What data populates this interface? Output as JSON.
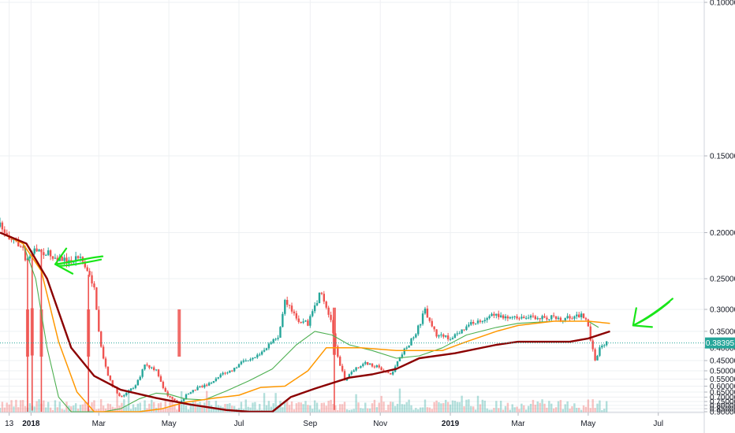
{
  "chart_data": {
    "type": "line",
    "title": "",
    "xlabel": "",
    "ylabel": "",
    "y_scale": "reciprocal",
    "y_axis_position": "right",
    "grid": true,
    "ylim": [
      0.1,
      0.9
    ],
    "y_ticks": [
      0.1,
      0.15,
      0.2,
      0.25,
      0.3,
      0.35,
      0.4,
      0.45,
      0.5,
      0.55,
      0.6,
      0.65,
      0.7,
      0.75,
      0.8,
      0.85,
      0.9
    ],
    "y_tick_labels": [
      "0.10000",
      "0.15000",
      "0.20000",
      "0.25000",
      "0.30000",
      "0.35000",
      "0.40000",
      "0.45000",
      "0.50000",
      "0.55000",
      "0.60000",
      "0.65000",
      "0.70000",
      "0.75000",
      "0.80000",
      "0.85000",
      "0.90000"
    ],
    "x_ticks": [
      {
        "date": "2017-12-13",
        "label": "13",
        "bold": false
      },
      {
        "date": "2018-01-01",
        "label": "2018",
        "bold": true
      },
      {
        "date": "2018-03-01",
        "label": "Mar",
        "bold": false
      },
      {
        "date": "2018-05-01",
        "label": "May",
        "bold": false
      },
      {
        "date": "2018-07-01",
        "label": "Jul",
        "bold": false
      },
      {
        "date": "2018-09-01",
        "label": "Sep",
        "bold": false
      },
      {
        "date": "2018-11-01",
        "label": "Nov",
        "bold": false
      },
      {
        "date": "2019-01-01",
        "label": "2019",
        "bold": true
      },
      {
        "date": "2019-03-01",
        "label": "Mar",
        "bold": false
      },
      {
        "date": "2019-05-01",
        "label": "May",
        "bold": false
      },
      {
        "date": "2019-07-01",
        "label": "Jul",
        "bold": false
      }
    ],
    "xlim": [
      "2017-12-05",
      "2019-08-10"
    ],
    "current_price": {
      "value": 0.38395,
      "label": "0.38395",
      "color": "#26a69a"
    },
    "colors": {
      "up": "#26a69a",
      "down": "#ef5350",
      "ma_fast": "#4caf50",
      "ma_mid": "#ff9800",
      "ma_slow": "#8b0000",
      "annotation": "#19e619",
      "grid": "#eef0f3",
      "axis_text": "#131722"
    },
    "price_path": [
      [
        "2017-12-05",
        0.195
      ],
      [
        "2017-12-15",
        0.205
      ],
      [
        "2017-12-25",
        0.215
      ],
      [
        "2017-12-27",
        0.23
      ],
      [
        "2018-01-05",
        0.215
      ],
      [
        "2018-01-15",
        0.22
      ],
      [
        "2018-01-25",
        0.225
      ],
      [
        "2018-02-05",
        0.23
      ],
      [
        "2018-02-12",
        0.22
      ],
      [
        "2018-02-25",
        0.26
      ],
      [
        "2018-03-10",
        0.55
      ],
      [
        "2018-03-20",
        0.7
      ],
      [
        "2018-04-01",
        0.6
      ],
      [
        "2018-04-10",
        0.47
      ],
      [
        "2018-04-20",
        0.5
      ],
      [
        "2018-05-01",
        0.7
      ],
      [
        "2018-05-10",
        0.78
      ],
      [
        "2018-05-15",
        0.69
      ],
      [
        "2018-05-25",
        0.62
      ],
      [
        "2018-06-05",
        0.58
      ],
      [
        "2018-06-15",
        0.52
      ],
      [
        "2018-06-25",
        0.5
      ],
      [
        "2018-07-05",
        0.45
      ],
      [
        "2018-07-15",
        0.43
      ],
      [
        "2018-07-25",
        0.4
      ],
      [
        "2018-08-05",
        0.36
      ],
      [
        "2018-08-10",
        0.28
      ],
      [
        "2018-08-20",
        0.32
      ],
      [
        "2018-08-30",
        0.33
      ],
      [
        "2018-09-10",
        0.27
      ],
      [
        "2018-09-20",
        0.33
      ],
      [
        "2018-10-01",
        0.55
      ],
      [
        "2018-10-08",
        0.5
      ],
      [
        "2018-10-20",
        0.46
      ],
      [
        "2018-10-30",
        0.48
      ],
      [
        "2018-11-10",
        0.52
      ],
      [
        "2018-11-20",
        0.42
      ],
      [
        "2018-12-01",
        0.36
      ],
      [
        "2018-12-10",
        0.3
      ],
      [
        "2018-12-20",
        0.36
      ],
      [
        "2019-01-01",
        0.37
      ],
      [
        "2019-01-20",
        0.33
      ],
      [
        "2019-02-10",
        0.31
      ],
      [
        "2019-03-01",
        0.32
      ],
      [
        "2019-03-20",
        0.315
      ],
      [
        "2019-04-10",
        0.32
      ],
      [
        "2019-04-25",
        0.31
      ],
      [
        "2019-05-01",
        0.335
      ],
      [
        "2019-05-07",
        0.45
      ],
      [
        "2019-05-12",
        0.39
      ],
      [
        "2019-05-18",
        0.385
      ]
    ],
    "wick_spikes": [
      {
        "date": "2017-12-29",
        "low": 0.9
      },
      {
        "date": "2018-01-02",
        "low": 0.88
      },
      {
        "date": "2018-01-10",
        "low": 0.9
      },
      {
        "date": "2018-02-20",
        "low": 0.9
      },
      {
        "date": "2018-05-10",
        "low": 0.9
      },
      {
        "date": "2018-09-22",
        "low": 0.87
      }
    ],
    "series": [
      {
        "color": "#4caf50",
        "points": [
          [
            "2017-12-05",
            0.2
          ],
          [
            "2017-12-25",
            0.21
          ],
          [
            "2018-01-05",
            0.25
          ],
          [
            "2018-01-15",
            0.4
          ],
          [
            "2018-01-25",
            0.7
          ],
          [
            "2018-02-05",
            0.9
          ],
          [
            "2018-03-05",
            0.9
          ],
          [
            "2018-03-20",
            0.85
          ],
          [
            "2018-04-05",
            0.72
          ],
          [
            "2018-04-20",
            0.66
          ],
          [
            "2018-05-01",
            0.67
          ],
          [
            "2018-05-15",
            0.72
          ],
          [
            "2018-06-01",
            0.73
          ],
          [
            "2018-06-20",
            0.64
          ],
          [
            "2018-07-10",
            0.56
          ],
          [
            "2018-07-30",
            0.49
          ],
          [
            "2018-08-20",
            0.39
          ],
          [
            "2018-09-05",
            0.35
          ],
          [
            "2018-09-20",
            0.36
          ],
          [
            "2018-10-05",
            0.39
          ],
          [
            "2018-10-25",
            0.41
          ],
          [
            "2018-11-15",
            0.44
          ],
          [
            "2018-12-05",
            0.43
          ],
          [
            "2018-12-25",
            0.4
          ],
          [
            "2019-01-15",
            0.36
          ],
          [
            "2019-02-10",
            0.34
          ],
          [
            "2019-03-01",
            0.33
          ],
          [
            "2019-04-01",
            0.325
          ],
          [
            "2019-05-01",
            0.325
          ],
          [
            "2019-05-10",
            0.34
          ]
        ]
      },
      {
        "color": "#ff9800",
        "points": [
          [
            "2017-12-05",
            0.2
          ],
          [
            "2017-12-25",
            0.21
          ],
          [
            "2018-01-10",
            0.24
          ],
          [
            "2018-01-25",
            0.38
          ],
          [
            "2018-02-10",
            0.65
          ],
          [
            "2018-02-25",
            0.9
          ],
          [
            "2018-04-05",
            0.9
          ],
          [
            "2018-04-25",
            0.85
          ],
          [
            "2018-05-15",
            0.76
          ],
          [
            "2018-06-10",
            0.71
          ],
          [
            "2018-07-01",
            0.68
          ],
          [
            "2018-07-20",
            0.61
          ],
          [
            "2018-08-10",
            0.6
          ],
          [
            "2018-08-30",
            0.5
          ],
          [
            "2018-09-15",
            0.4
          ],
          [
            "2018-10-15",
            0.4
          ],
          [
            "2018-11-15",
            0.41
          ],
          [
            "2018-12-10",
            0.41
          ],
          [
            "2018-12-25",
            0.41
          ],
          [
            "2019-01-15",
            0.38
          ],
          [
            "2019-02-10",
            0.35
          ],
          [
            "2019-03-01",
            0.335
          ],
          [
            "2019-04-01",
            0.325
          ],
          [
            "2019-05-01",
            0.325
          ],
          [
            "2019-05-20",
            0.33
          ]
        ]
      },
      {
        "color": "#8b0000",
        "points": [
          [
            "2017-12-05",
            0.2
          ],
          [
            "2017-12-28",
            0.21
          ],
          [
            "2018-01-15",
            0.25
          ],
          [
            "2018-02-05",
            0.4
          ],
          [
            "2018-02-25",
            0.53
          ],
          [
            "2018-03-20",
            0.63
          ],
          [
            "2018-04-20",
            0.71
          ],
          [
            "2018-05-20",
            0.79
          ],
          [
            "2018-06-20",
            0.87
          ],
          [
            "2018-07-10",
            0.9
          ],
          [
            "2018-07-30",
            0.9
          ],
          [
            "2018-08-15",
            0.7
          ],
          [
            "2018-09-05",
            0.62
          ],
          [
            "2018-10-05",
            0.54
          ],
          [
            "2018-10-25",
            0.52
          ],
          [
            "2018-11-15",
            0.49
          ],
          [
            "2018-12-05",
            0.44
          ],
          [
            "2019-01-05",
            0.42
          ],
          [
            "2019-02-10",
            0.39
          ],
          [
            "2019-03-01",
            0.38
          ],
          [
            "2019-04-15",
            0.38
          ],
          [
            "2019-05-01",
            0.37
          ],
          [
            "2019-05-20",
            0.35
          ]
        ]
      }
    ],
    "annotations": [
      {
        "type": "arrow",
        "color": "#19e619",
        "points_to": [
          "2017-12-27",
          0.23
        ]
      },
      {
        "type": "arrow",
        "color": "#19e619",
        "points_to": [
          "2019-05-25",
          0.335
        ]
      }
    ]
  }
}
